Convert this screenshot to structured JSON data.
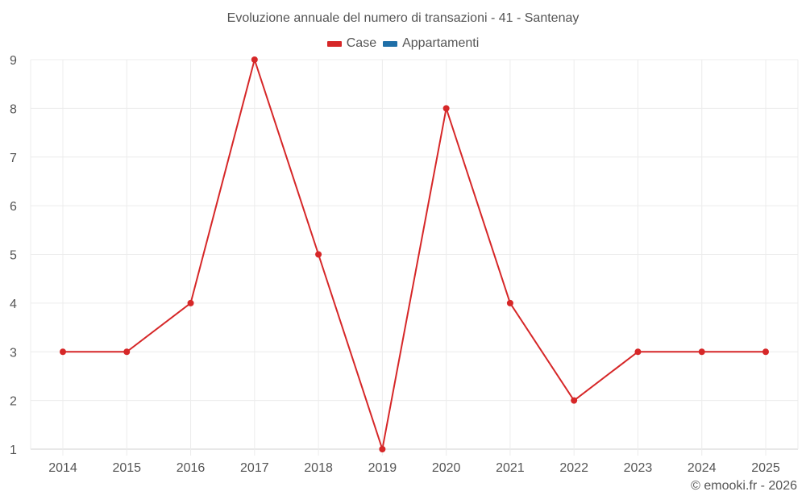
{
  "chart": {
    "title": "Evoluzione annuale del numero di transazioni - 41 - Santenay",
    "credit": "© emooki.fr - 2026",
    "legend": [
      {
        "label": "Case",
        "color": "#d62728"
      },
      {
        "label": "Appartamenti",
        "color": "#1f6fa8"
      }
    ]
  },
  "chart_data": {
    "type": "line",
    "title": "Evoluzione annuale del numero di transazioni - 41 - Santenay",
    "xlabel": "",
    "ylabel": "",
    "categories": [
      "2014",
      "2015",
      "2016",
      "2017",
      "2018",
      "2019",
      "2020",
      "2021",
      "2022",
      "2023",
      "2024",
      "2025"
    ],
    "series": [
      {
        "name": "Case",
        "color": "#d62728",
        "values": [
          3,
          3,
          4,
          9,
          5,
          1,
          8,
          4,
          2,
          3,
          3,
          3
        ]
      },
      {
        "name": "Appartamenti",
        "color": "#1f6fa8",
        "values": []
      }
    ],
    "ylim": [
      1,
      9
    ],
    "yticks": [
      1,
      2,
      3,
      4,
      5,
      6,
      7,
      8,
      9
    ],
    "grid": true,
    "legend_position": "top"
  }
}
